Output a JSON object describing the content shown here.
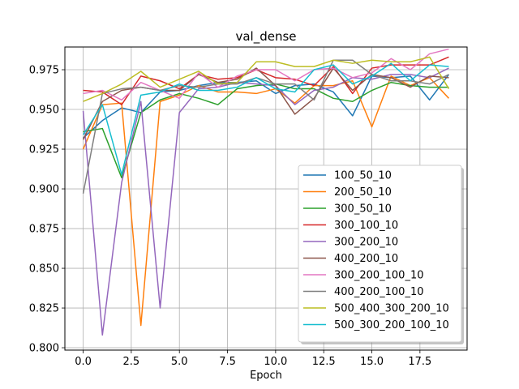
{
  "chart_data": {
    "type": "line",
    "title": "val_dense",
    "xlabel": "Epoch",
    "ylabel": "",
    "xlim": [
      -0.95,
      19.95
    ],
    "ylim": [
      0.7985,
      0.9893
    ],
    "grid": true,
    "legend_position": "lower-right",
    "x": [
      0,
      1,
      2,
      3,
      4,
      5,
      6,
      7,
      8,
      9,
      10,
      11,
      12,
      13,
      14,
      15,
      16,
      17,
      18,
      19
    ],
    "xticks": [
      0.0,
      2.5,
      5.0,
      7.5,
      10.0,
      12.5,
      15.0,
      17.5
    ],
    "xtick_labels": [
      "0.0",
      "2.5",
      "5.0",
      "7.5",
      "10.0",
      "12.5",
      "15.0",
      "17.5"
    ],
    "yticks": [
      0.8,
      0.825,
      0.85,
      0.875,
      0.9,
      0.925,
      0.95,
      0.975
    ],
    "ytick_labels": [
      "0.800",
      "0.825",
      "0.850",
      "0.875",
      "0.900",
      "0.925",
      "0.950",
      "0.975"
    ],
    "series": [
      {
        "name": "100_50_10",
        "color": "#1f77b4",
        "values": [
          0.932,
          0.943,
          0.951,
          0.948,
          0.961,
          0.962,
          0.965,
          0.967,
          0.967,
          0.968,
          0.96,
          0.965,
          0.966,
          0.961,
          0.946,
          0.971,
          0.97,
          0.971,
          0.956,
          0.972
        ]
      },
      {
        "name": "200_50_10",
        "color": "#ff7f0e",
        "values": [
          0.925,
          0.953,
          0.954,
          0.814,
          0.955,
          0.959,
          0.965,
          0.961,
          0.961,
          0.96,
          0.963,
          0.954,
          0.965,
          0.965,
          0.968,
          0.939,
          0.971,
          0.965,
          0.97,
          0.957
        ]
      },
      {
        "name": "300_50_10",
        "color": "#2ca02c",
        "values": [
          0.936,
          0.938,
          0.907,
          0.948,
          0.956,
          0.96,
          0.957,
          0.953,
          0.963,
          0.965,
          0.966,
          0.963,
          0.963,
          0.957,
          0.955,
          0.962,
          0.967,
          0.965,
          0.964,
          0.964
        ]
      },
      {
        "name": "300_100_10",
        "color": "#d62728",
        "values": [
          0.962,
          0.961,
          0.953,
          0.971,
          0.968,
          0.963,
          0.972,
          0.969,
          0.97,
          0.975,
          0.97,
          0.969,
          0.965,
          0.977,
          0.96,
          0.976,
          0.978,
          0.978,
          0.978,
          0.983
        ]
      },
      {
        "name": "300_200_10",
        "color": "#9467bd",
        "values": [
          0.949,
          0.808,
          0.904,
          0.955,
          0.825,
          0.948,
          0.963,
          0.964,
          0.967,
          0.966,
          0.965,
          0.953,
          0.962,
          0.964,
          0.97,
          0.969,
          0.972,
          0.972,
          0.97,
          0.976
        ]
      },
      {
        "name": "400_200_10",
        "color": "#8c564b",
        "values": [
          0.931,
          0.955,
          0.962,
          0.964,
          0.962,
          0.962,
          0.972,
          0.967,
          0.969,
          0.976,
          0.965,
          0.947,
          0.957,
          0.976,
          0.962,
          0.972,
          0.97,
          0.964,
          0.971,
          0.97
        ]
      },
      {
        "name": "300_200_100_10",
        "color": "#e377c2",
        "values": [
          0.96,
          0.962,
          0.956,
          0.967,
          0.962,
          0.957,
          0.973,
          0.964,
          0.971,
          0.975,
          0.975,
          0.968,
          0.975,
          0.976,
          0.97,
          0.973,
          0.982,
          0.975,
          0.985,
          0.988
        ]
      },
      {
        "name": "400_200_100_10",
        "color": "#7f7f7f",
        "values": [
          0.897,
          0.96,
          0.963,
          0.964,
          0.962,
          0.965,
          0.964,
          0.966,
          0.966,
          0.97,
          0.966,
          0.966,
          0.956,
          0.981,
          0.981,
          0.972,
          0.968,
          0.968,
          0.966,
          0.972
        ]
      },
      {
        "name": "500_400_300_200_10",
        "color": "#bcbd22",
        "values": [
          0.955,
          0.96,
          0.966,
          0.974,
          0.964,
          0.969,
          0.974,
          0.966,
          0.967,
          0.98,
          0.98,
          0.977,
          0.977,
          0.981,
          0.979,
          0.981,
          0.98,
          0.98,
          0.983,
          0.963
        ]
      },
      {
        "name": "500_300_200_100_10",
        "color": "#17becf",
        "values": [
          0.934,
          0.953,
          0.909,
          0.959,
          0.961,
          0.966,
          0.962,
          0.962,
          0.964,
          0.97,
          0.963,
          0.961,
          0.975,
          0.978,
          0.966,
          0.971,
          0.979,
          0.968,
          0.978,
          0.977
        ]
      }
    ]
  }
}
